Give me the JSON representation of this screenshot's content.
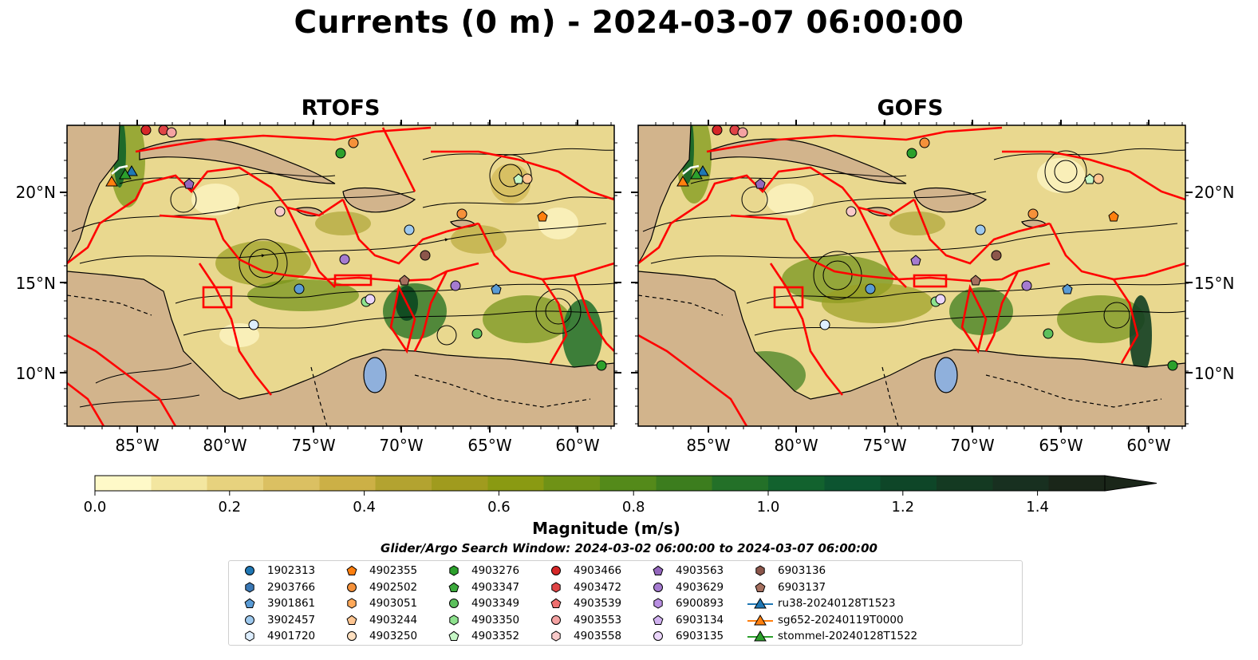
{
  "title": "Currents (0 m) - 2024-03-07 06:00:00",
  "panels": [
    {
      "title": "RTOFS"
    },
    {
      "title": "GOFS"
    }
  ],
  "axes": {
    "lat_ticks": [
      "20°N",
      "15°N",
      "10°N"
    ],
    "lon_ticks": [
      "85°W",
      "80°W",
      "75°W",
      "70°W",
      "65°W",
      "60°W"
    ]
  },
  "colorbar": {
    "label": "Magnitude (m/s)",
    "ticks": [
      "0.0",
      "0.2",
      "0.4",
      "0.6",
      "0.8",
      "1.0",
      "1.2",
      "1.4"
    ],
    "range": [
      0,
      1.5
    ],
    "colors": [
      "#fef9c8",
      "#f3e6a0",
      "#e7d27e",
      "#dbc062",
      "#ccb046",
      "#b3a330",
      "#a09b1e",
      "#8a9a12",
      "#6f9216",
      "#548a1a",
      "#3c7d1e",
      "#237028",
      "#12622e",
      "#0c5430",
      "#0e4628",
      "#143a22",
      "#183020",
      "#1a2619"
    ]
  },
  "search_window": "Glider/Argo Search Window: 2024-03-02 06:00:00 to 2024-03-07 06:00:00",
  "legend": {
    "items": [
      {
        "label": "1902313",
        "shape": "circle",
        "color": "#1f77b4"
      },
      {
        "label": "2903766",
        "shape": "hexagon",
        "color": "#3a78b5"
      },
      {
        "label": "3901861",
        "shape": "pentagon",
        "color": "#5a9bd5"
      },
      {
        "label": "3902457",
        "shape": "circle",
        "color": "#9ec9ee"
      },
      {
        "label": "4901720",
        "shape": "hexagon",
        "color": "#ddeeff"
      },
      {
        "label": "4902355",
        "shape": "pentagon",
        "color": "#ff7f0e"
      },
      {
        "label": "4902502",
        "shape": "circle",
        "color": "#f5913a"
      },
      {
        "label": "4903051",
        "shape": "hexagon",
        "color": "#ffa95a"
      },
      {
        "label": "4903244",
        "shape": "pentagon",
        "color": "#ffc692"
      },
      {
        "label": "4903250",
        "shape": "circle",
        "color": "#ffe0c0"
      },
      {
        "label": "4903276",
        "shape": "hexagon",
        "color": "#2ca02c"
      },
      {
        "label": "4903347",
        "shape": "pentagon",
        "color": "#3caa3c"
      },
      {
        "label": "4903349",
        "shape": "circle",
        "color": "#5cc05c"
      },
      {
        "label": "4903350",
        "shape": "hexagon",
        "color": "#8ee28e"
      },
      {
        "label": "4903352",
        "shape": "pentagon",
        "color": "#c6f7c6"
      },
      {
        "label": "4903466",
        "shape": "circle",
        "color": "#d62728"
      },
      {
        "label": "4903472",
        "shape": "hexagon",
        "color": "#e04446"
      },
      {
        "label": "4903539",
        "shape": "pentagon",
        "color": "#ef7070"
      },
      {
        "label": "4903553",
        "shape": "circle",
        "color": "#f4a2a2"
      },
      {
        "label": "4903558",
        "shape": "hexagon",
        "color": "#f9caca"
      },
      {
        "label": "4903563",
        "shape": "pentagon",
        "color": "#9467bd"
      },
      {
        "label": "4903629",
        "shape": "circle",
        "color": "#a57bd0"
      },
      {
        "label": "6900893",
        "shape": "hexagon",
        "color": "#b98fe2"
      },
      {
        "label": "6903134",
        "shape": "pentagon",
        "color": "#d1b2f0"
      },
      {
        "label": "6903135",
        "shape": "circle",
        "color": "#ebd6fb"
      },
      {
        "label": "6903136",
        "shape": "hexagon",
        "color": "#8c564b"
      },
      {
        "label": "6903137",
        "shape": "pentagon",
        "color": "#a6705f"
      },
      {
        "label": "ru38-20240128T1523",
        "shape": "triangle-line",
        "color": "#1f77b4"
      },
      {
        "label": "sg652-20240119T0000",
        "shape": "triangle-line",
        "color": "#ff7f0e"
      },
      {
        "label": "stommel-20240128T1522",
        "shape": "triangle-line",
        "color": "#2ca02c"
      }
    ]
  }
}
